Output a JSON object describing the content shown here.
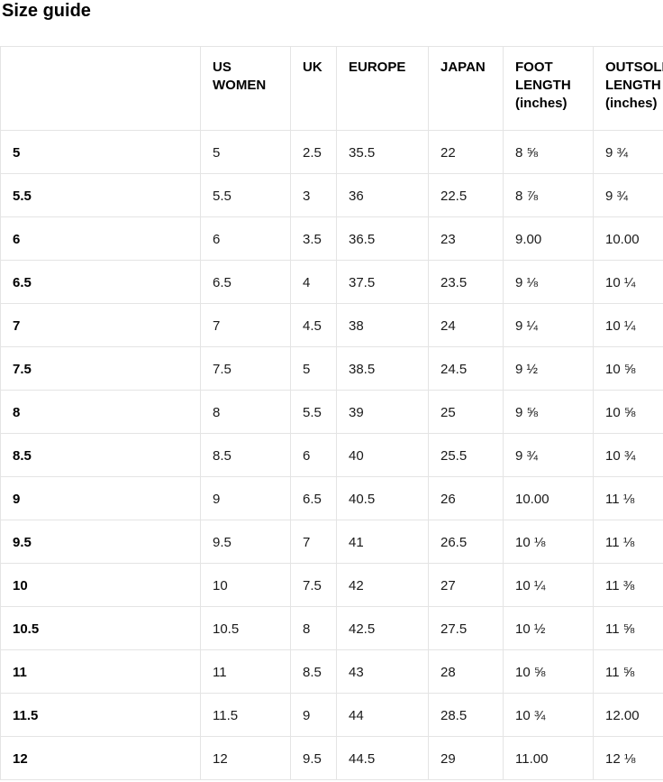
{
  "page": {
    "title": "Size guide"
  },
  "table": {
    "columns": [
      {
        "key": "size",
        "label": ""
      },
      {
        "key": "us_women",
        "label": "US WOMEN"
      },
      {
        "key": "uk",
        "label": "UK"
      },
      {
        "key": "europe",
        "label": "EUROPE"
      },
      {
        "key": "japan",
        "label": "JAPAN"
      },
      {
        "key": "foot_length",
        "label": "FOOT LENGTH (inches)"
      },
      {
        "key": "outsole_length",
        "label": "OUTSOLE LENGTH (inches)"
      }
    ],
    "rows": [
      [
        "5",
        "5",
        "2.5",
        "35.5",
        "22",
        "8 ⅝",
        "9 ¾"
      ],
      [
        "5.5",
        "5.5",
        "3",
        "36",
        "22.5",
        "8 ⅞",
        "9 ¾"
      ],
      [
        "6",
        "6",
        "3.5",
        "36.5",
        "23",
        "9.00",
        "10.00"
      ],
      [
        "6.5",
        "6.5",
        "4",
        "37.5",
        "23.5",
        "9 ⅛",
        "10 ¼"
      ],
      [
        "7",
        "7",
        "4.5",
        "38",
        "24",
        "9 ¼",
        "10 ¼"
      ],
      [
        "7.5",
        "7.5",
        "5",
        "38.5",
        "24.5",
        "9 ½",
        "10 ⅝"
      ],
      [
        "8",
        "8",
        "5.5",
        "39",
        "25",
        "9 ⅝",
        "10 ⅝"
      ],
      [
        "8.5",
        "8.5",
        "6",
        "40",
        "25.5",
        "9 ¾",
        "10 ¾"
      ],
      [
        "9",
        "9",
        "6.5",
        "40.5",
        "26",
        "10.00",
        "11 ⅛"
      ],
      [
        "9.5",
        "9.5",
        "7",
        "41",
        "26.5",
        "10 ⅛",
        "11 ⅛"
      ],
      [
        "10",
        "10",
        "7.5",
        "42",
        "27",
        "10 ¼",
        "11 ⅜"
      ],
      [
        "10.5",
        "10.5",
        "8",
        "42.5",
        "27.5",
        "10 ½",
        "11 ⅝"
      ],
      [
        "11",
        "11",
        "8.5",
        "43",
        "28",
        "10 ⅝",
        "11 ⅝"
      ],
      [
        "11.5",
        "11.5",
        "9",
        "44",
        "28.5",
        "10 ¾",
        "12.00"
      ],
      [
        "12",
        "12",
        "9.5",
        "44.5",
        "29",
        "11.00",
        "12 ⅛"
      ]
    ]
  },
  "colors": {
    "background": "#ffffff",
    "border": "#e4e4e4",
    "text": "#111111"
  }
}
